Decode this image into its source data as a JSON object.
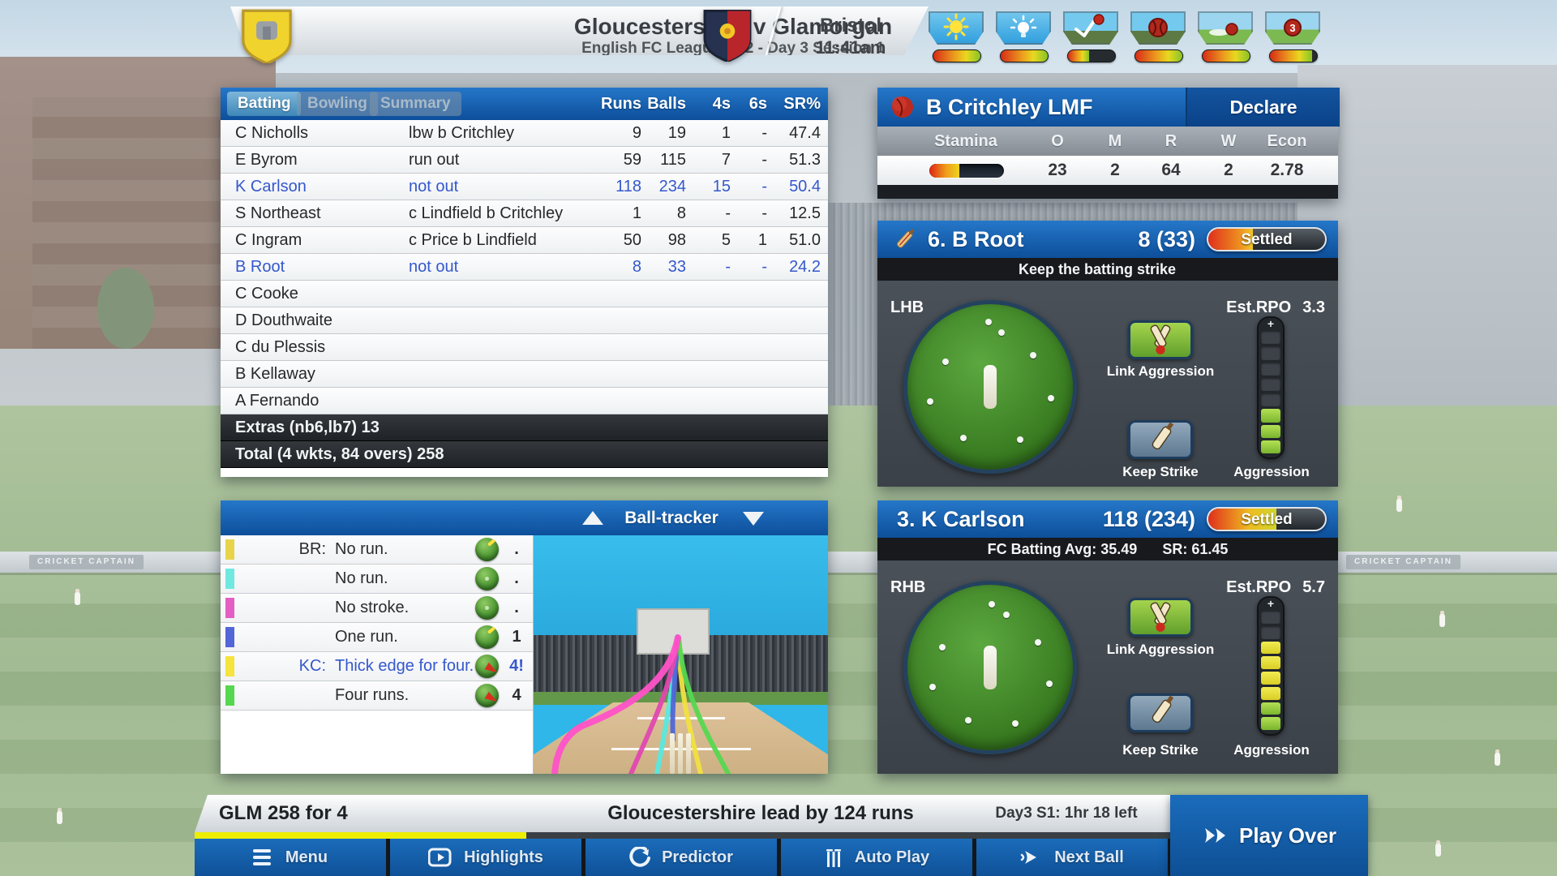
{
  "backdrop": {
    "signage": "CRICKET CAPTAIN"
  },
  "header": {
    "title": "Gloucestershire v Glamorgan",
    "subtitle": "English FC League - D2 - Day 3 Session 1",
    "venue": "Bristol",
    "time": "11:41am",
    "ball_age": "3",
    "conditions": [
      {
        "name": "sunlight",
        "fill_pct": 100
      },
      {
        "name": "light",
        "fill_pct": 100
      },
      {
        "name": "bounce",
        "fill_pct": 45
      },
      {
        "name": "swing",
        "fill_pct": 100
      },
      {
        "name": "outfield",
        "fill_pct": 100
      },
      {
        "name": "ball-condition",
        "fill_pct": 90
      }
    ]
  },
  "scorecard": {
    "tabs": [
      {
        "label": "Batting",
        "active": true
      },
      {
        "label": "Bowling",
        "active": false
      },
      {
        "label": "Summary",
        "active": false
      }
    ],
    "columns": {
      "runs": "Runs",
      "balls": "Balls",
      "fours": "4s",
      "sixes": "6s",
      "sr": "SR%"
    },
    "rows": [
      {
        "name": "C Nicholls",
        "dismissal": "lbw b Critchley",
        "runs": "9",
        "balls": "19",
        "fours": "1",
        "sixes": "-",
        "sr": "47.4",
        "not_out": false
      },
      {
        "name": "E Byrom",
        "dismissal": "run out",
        "runs": "59",
        "balls": "115",
        "fours": "7",
        "sixes": "-",
        "sr": "51.3",
        "not_out": false
      },
      {
        "name": "K Carlson",
        "dismissal": "not out",
        "runs": "118",
        "balls": "234",
        "fours": "15",
        "sixes": "-",
        "sr": "50.4",
        "not_out": true
      },
      {
        "name": "S Northeast",
        "dismissal": "c Lindfield b Critchley",
        "runs": "1",
        "balls": "8",
        "fours": "-",
        "sixes": "-",
        "sr": "12.5",
        "not_out": false
      },
      {
        "name": "C Ingram",
        "dismissal": "c Price b Lindfield",
        "runs": "50",
        "balls": "98",
        "fours": "5",
        "sixes": "1",
        "sr": "51.0",
        "not_out": false
      },
      {
        "name": "B Root",
        "dismissal": "not out",
        "runs": "8",
        "balls": "33",
        "fours": "-",
        "sixes": "-",
        "sr": "24.2",
        "not_out": true
      },
      {
        "name": "C Cooke",
        "dismissal": "",
        "runs": "",
        "balls": "",
        "fours": "",
        "sixes": "",
        "sr": "",
        "not_out": false
      },
      {
        "name": "D Douthwaite",
        "dismissal": "",
        "runs": "",
        "balls": "",
        "fours": "",
        "sixes": "",
        "sr": "",
        "not_out": false
      },
      {
        "name": "C du Plessis",
        "dismissal": "",
        "runs": "",
        "balls": "",
        "fours": "",
        "sixes": "",
        "sr": "",
        "not_out": false
      },
      {
        "name": "B Kellaway",
        "dismissal": "",
        "runs": "",
        "balls": "",
        "fours": "",
        "sixes": "",
        "sr": "",
        "not_out": false
      },
      {
        "name": "A Fernando",
        "dismissal": "",
        "runs": "",
        "balls": "",
        "fours": "",
        "sixes": "",
        "sr": "",
        "not_out": false
      }
    ],
    "extras": "Extras (nb6,lb7) 13",
    "total": "Total (4 wkts, 84 overs) 258"
  },
  "ball_tracker": {
    "title": "Ball-tracker",
    "balls": [
      {
        "prefix": "BR:",
        "text": "No run.",
        "result": ".",
        "color": "#e7d44b",
        "mark": "tick",
        "highlight": false
      },
      {
        "prefix": "",
        "text": "No run.",
        "result": ".",
        "color": "#6fe8df",
        "mark": "dot",
        "highlight": false
      },
      {
        "prefix": "",
        "text": "No stroke.",
        "result": ".",
        "color": "#e55ec4",
        "mark": "dot",
        "highlight": false
      },
      {
        "prefix": "",
        "text": "One run.",
        "result": "1",
        "color": "#5266d8",
        "mark": "tick",
        "highlight": false
      },
      {
        "prefix": "KC:",
        "text": "Thick edge for four.",
        "result": "4!",
        "color": "#f5e43c",
        "mark": "wedge",
        "highlight": true
      },
      {
        "prefix": "",
        "text": "Four runs.",
        "result": "4",
        "color": "#55d84f",
        "mark": "wedge",
        "highlight": false
      }
    ]
  },
  "bowler": {
    "name": "B Critchley LMF",
    "declare_label": "Declare",
    "columns": {
      "stamina": "Stamina",
      "overs": "O",
      "maidens": "M",
      "runs": "R",
      "wickets": "W",
      "econ": "Econ"
    },
    "stamina_pct": 40,
    "figures": {
      "overs": "23",
      "maidens": "2",
      "runs": "64",
      "wickets": "2",
      "econ": "2.78"
    }
  },
  "batsmen": [
    {
      "title": "6. B Root",
      "score": "8 (33)",
      "status": "Settled",
      "status_fill_pct": 38,
      "info_left": "Keep the batting strike",
      "info_right": "",
      "hand": "LHB",
      "rpo_label": "Est.RPO",
      "rpo_value": "3.3",
      "link_aggression_label": "Link Aggression",
      "keep_strike_label": "Keep Strike",
      "aggression_label": "Aggression",
      "meter_plus": "+",
      "meter_segments": [
        "dark",
        "dark",
        "dark",
        "dark",
        "dark",
        "green",
        "green",
        "green"
      ],
      "on_strike": true
    },
    {
      "title": "3. K Carlson",
      "score": "118 (234)",
      "status": "Settled",
      "status_fill_pct": 58,
      "info_left": "FC Batting Avg: 35.49",
      "info_right": "SR: 61.45",
      "hand": "RHB",
      "rpo_label": "Est.RPO",
      "rpo_value": "5.7",
      "link_aggression_label": "Link Aggression",
      "keep_strike_label": "Keep Strike",
      "aggression_label": "Aggression",
      "meter_plus": "+",
      "meter_segments": [
        "dark",
        "dark",
        "yellow",
        "yellow",
        "yellow",
        "yellow",
        "green",
        "green"
      ],
      "on_strike": false
    }
  ],
  "bottom": {
    "score_summary": "GLM  258 for 4",
    "lead_text": "Gloucestershire lead by 124 runs",
    "session_text": "Day3 S1: 1hr 18 left",
    "over_progress_pct": 34,
    "play_over_label": "Play Over",
    "menu": [
      {
        "label": "Menu"
      },
      {
        "label": "Highlights"
      },
      {
        "label": "Predictor"
      },
      {
        "label": "Auto Play"
      },
      {
        "label": "Next Ball"
      }
    ]
  }
}
